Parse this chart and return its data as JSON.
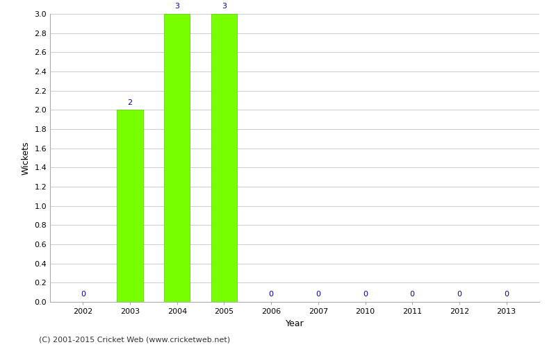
{
  "years": [
    2002,
    2003,
    2004,
    2005,
    2006,
    2007,
    2010,
    2011,
    2012,
    2013
  ],
  "wickets": [
    0,
    2,
    3,
    3,
    0,
    0,
    0,
    0,
    0,
    0
  ],
  "bar_color": "#77ff00",
  "bar_edge_color": "#55cc00",
  "label_color": "#0000aa",
  "xlabel": "Year",
  "ylabel": "Wickets",
  "ylim": [
    0,
    3.0
  ],
  "yticks": [
    0.0,
    0.2,
    0.4,
    0.6,
    0.8,
    1.0,
    1.2,
    1.4,
    1.6,
    1.8,
    2.0,
    2.2,
    2.4,
    2.6,
    2.8,
    3.0
  ],
  "background_color": "#ffffff",
  "grid_color": "#cccccc",
  "footnote": "(C) 2001-2015 Cricket Web (www.cricketweb.net)",
  "bar_width": 0.55
}
